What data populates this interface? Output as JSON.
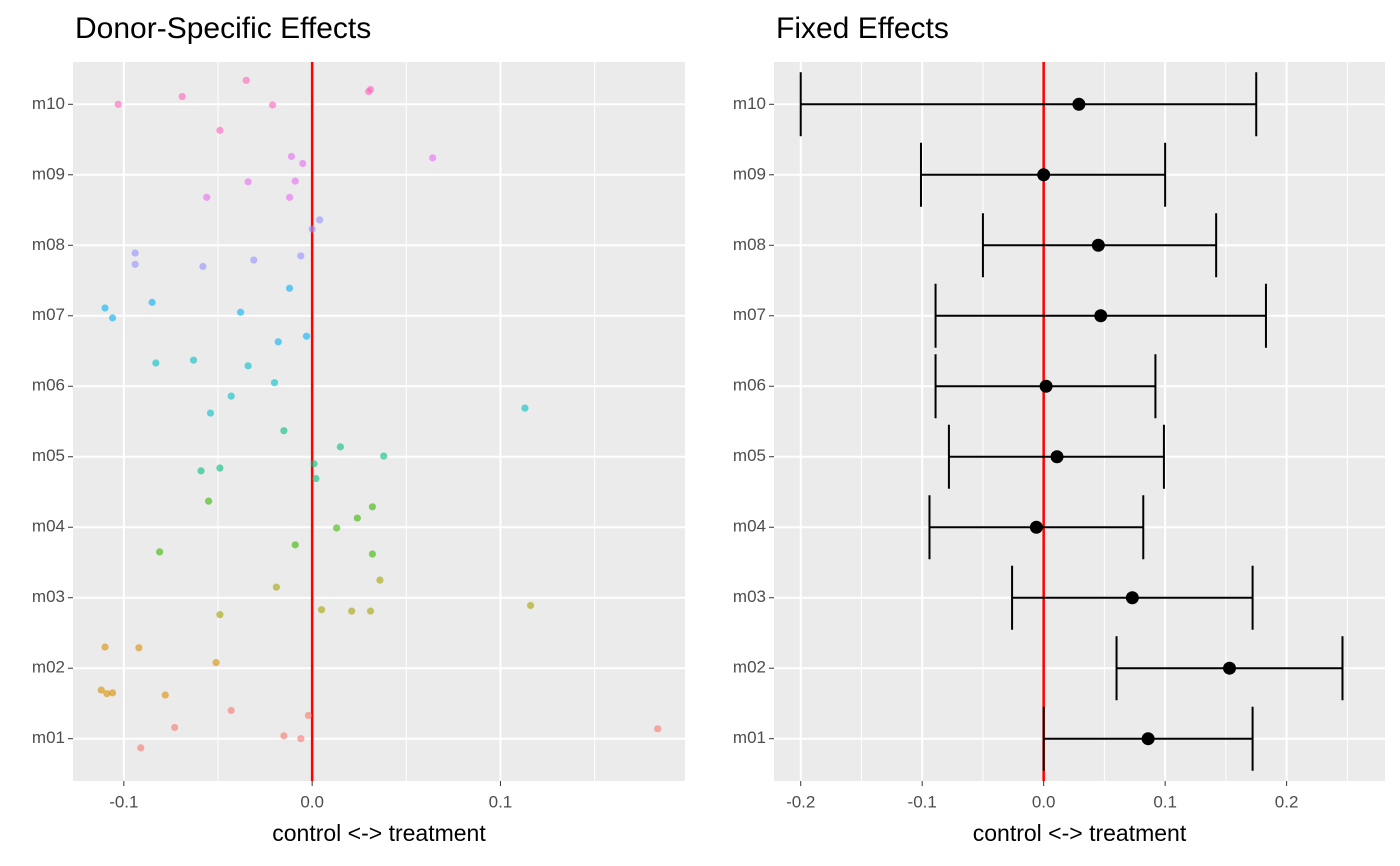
{
  "chart_data": [
    {
      "type": "scatter",
      "title": "Donor-Specific Effects",
      "x_label": "control <-> treatment",
      "xlim": [
        -0.127,
        0.198
      ],
      "xticks": [
        -0.1,
        {
          "value": 0,
          "label": "0.0"
        },
        0.1
      ],
      "x_minor": [
        -0.05,
        0.05,
        0.15
      ],
      "ylim": [
        0.4,
        10.6
      ],
      "yticks": [
        {
          "value": 1,
          "label": "m01"
        },
        {
          "value": 2,
          "label": "m02"
        },
        {
          "value": 3,
          "label": "m03"
        },
        {
          "value": 4,
          "label": "m04"
        },
        {
          "value": 5,
          "label": "m05"
        },
        {
          "value": 6,
          "label": "m06"
        },
        {
          "value": 7,
          "label": "m07"
        },
        {
          "value": 8,
          "label": "m08"
        },
        {
          "value": 9,
          "label": "m09"
        },
        {
          "value": 10,
          "label": "m10"
        }
      ],
      "grid": true,
      "vline": 0,
      "vline_color": "#ff0000",
      "series": [
        {
          "color": "#F8766D",
          "x": [
            0.1835,
            -0.002,
            -0.073,
            -0.043,
            -0.015,
            -0.006,
            -0.091
          ],
          "y": [
            1.14,
            1.33,
            1.16,
            1.4,
            1.04,
            1.0,
            0.87
          ]
        },
        {
          "color": "#D89000",
          "x": [
            -0.11,
            -0.092,
            -0.051,
            -0.112,
            -0.109,
            -0.106,
            -0.078
          ],
          "y": [
            2.3,
            2.29,
            2.08,
            1.69,
            1.64,
            1.65,
            1.62
          ]
        },
        {
          "color": "#A3A500",
          "x": [
            -0.019,
            0.036,
            0.116,
            0.005,
            0.021,
            0.031,
            -0.049
          ],
          "y": [
            3.15,
            3.25,
            2.89,
            2.83,
            2.81,
            2.81,
            2.76
          ]
        },
        {
          "color": "#39B600",
          "x": [
            0.032,
            0.024,
            0.013,
            -0.009,
            -0.081,
            0.032,
            -0.055
          ],
          "y": [
            4.29,
            4.13,
            3.99,
            3.75,
            3.65,
            3.62,
            4.37
          ]
        },
        {
          "color": "#00BF7D",
          "x": [
            -0.015,
            0.015,
            0.038,
            0.001,
            -0.049,
            -0.059,
            0.002
          ],
          "y": [
            5.37,
            5.14,
            5.01,
            4.9,
            4.84,
            4.8,
            4.69
          ]
        },
        {
          "color": "#00BFC4",
          "x": [
            0.113,
            -0.043,
            -0.054,
            -0.02,
            -0.034,
            -0.063,
            -0.083
          ],
          "y": [
            5.69,
            5.86,
            5.62,
            6.05,
            6.29,
            6.37,
            6.33
          ]
        },
        {
          "color": "#00B0F6",
          "x": [
            -0.012,
            -0.085,
            -0.11,
            -0.038,
            -0.106,
            -0.003,
            -0.018
          ],
          "y": [
            7.39,
            7.19,
            7.11,
            7.05,
            6.97,
            6.71,
            6.63
          ]
        },
        {
          "color": "#9590FF",
          "x": [
            0.004,
            0.0,
            -0.094,
            -0.094,
            -0.006,
            -0.031,
            -0.058
          ],
          "y": [
            8.36,
            8.23,
            7.89,
            7.73,
            7.85,
            7.79,
            7.7
          ]
        },
        {
          "color": "#E76BF3",
          "x": [
            0.064,
            -0.011,
            -0.005,
            -0.009,
            -0.034,
            -0.056,
            -0.012
          ],
          "y": [
            9.24,
            9.26,
            9.16,
            8.91,
            8.9,
            8.68,
            8.68
          ]
        },
        {
          "color": "#FF62BC",
          "x": [
            -0.035,
            -0.069,
            -0.103,
            -0.021,
            0.031,
            0.03,
            -0.049
          ],
          "y": [
            10.34,
            10.11,
            10.0,
            9.99,
            10.21,
            10.18,
            9.63
          ]
        }
      ]
    },
    {
      "type": "errorbar",
      "title": "Fixed Effects",
      "x_label": "control <-> treatment",
      "xlim": [
        -0.222,
        0.281
      ],
      "xticks": [
        -0.2,
        -0.1,
        {
          "value": 0,
          "label": "0.0"
        },
        0.1,
        0.2
      ],
      "x_minor": [
        -0.15,
        -0.05,
        0.05,
        0.15,
        0.25
      ],
      "grid": true,
      "vline": 0,
      "vline_color": "#ff0000",
      "color": "#000000",
      "categories": [
        "m01",
        "m02",
        "m03",
        "m04",
        "m05",
        "m06",
        "m07",
        "m08",
        "m09",
        "m10"
      ],
      "values": [
        0.086,
        0.153,
        0.073,
        -0.006,
        0.011,
        0.002,
        0.047,
        0.045,
        0.0,
        0.029
      ],
      "lower": [
        0.0,
        0.06,
        -0.026,
        -0.094,
        -0.078,
        -0.089,
        -0.089,
        -0.05,
        -0.101,
        -0.2
      ],
      "upper": [
        0.172,
        0.246,
        0.172,
        0.082,
        0.099,
        0.092,
        0.183,
        0.142,
        0.1,
        0.175
      ]
    }
  ]
}
